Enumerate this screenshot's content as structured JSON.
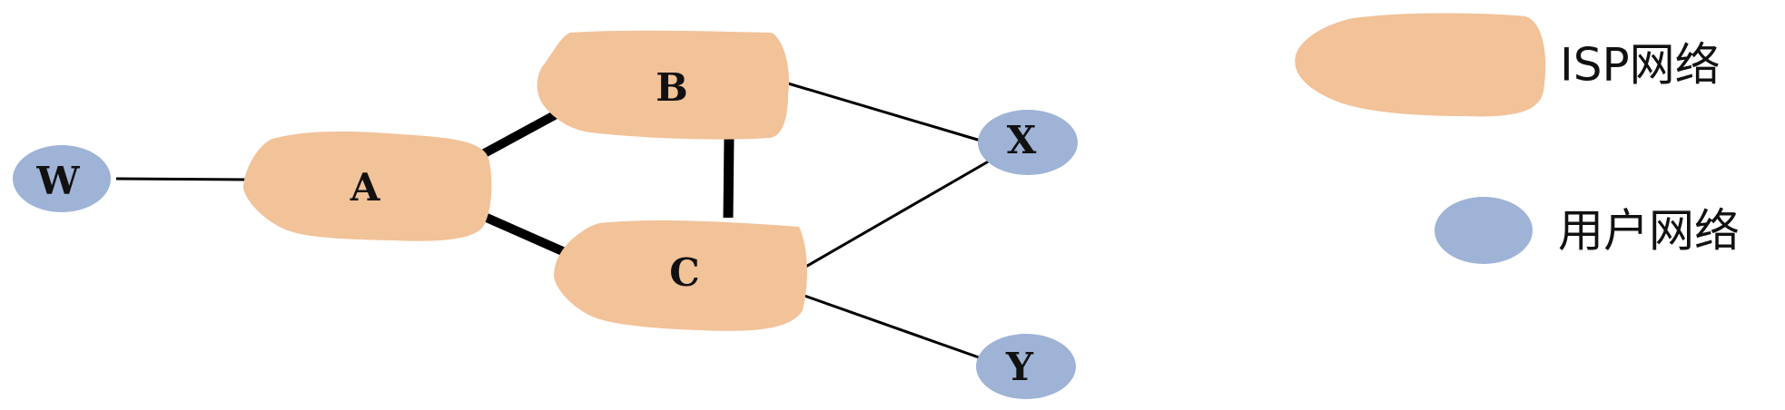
{
  "colors": {
    "isp": "#f2c299",
    "user": "#9eb3d6",
    "link": "#000000",
    "text": "#111111"
  },
  "nodes": {
    "W": {
      "label": "W",
      "type": "user"
    },
    "A": {
      "label": "A",
      "type": "isp"
    },
    "B": {
      "label": "B",
      "type": "isp"
    },
    "C": {
      "label": "C",
      "type": "isp"
    },
    "X": {
      "label": "X",
      "type": "user"
    },
    "Y": {
      "label": "Y",
      "type": "user"
    }
  },
  "links": [
    {
      "from": "W",
      "to": "A",
      "weight": "thin"
    },
    {
      "from": "A",
      "to": "B",
      "weight": "thick"
    },
    {
      "from": "A",
      "to": "C",
      "weight": "thick"
    },
    {
      "from": "B",
      "to": "C",
      "weight": "thick"
    },
    {
      "from": "B",
      "to": "X",
      "weight": "thin"
    },
    {
      "from": "C",
      "to": "X",
      "weight": "thin"
    },
    {
      "from": "C",
      "to": "Y",
      "weight": "thin"
    }
  ],
  "legend": {
    "isp_label": "ISP网络",
    "user_label": "用户网络"
  }
}
